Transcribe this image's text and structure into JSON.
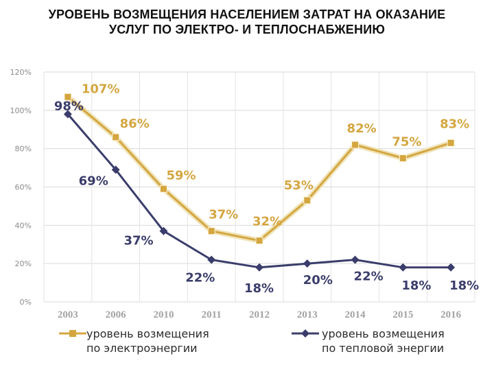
{
  "chart_data": {
    "type": "line",
    "title": [
      "УРОВЕНЬ ВОЗМЕЩЕНИЯ НАСЕЛЕНИЕМ ЗАТРАТ НА ОКАЗАНИЕ",
      "УСЛУГ ПО ЭЛЕКТРО- И ТЕПЛОСНАБЖЕНИЮ"
    ],
    "categories": [
      "2003",
      "2006",
      "2010",
      "2011",
      "2012",
      "2013",
      "2014",
      "2015",
      "2016"
    ],
    "y_ticks": [
      "0%",
      "20%",
      "40%",
      "60%",
      "80%",
      "100%",
      "120%"
    ],
    "ylim": [
      0,
      120
    ],
    "grid": true,
    "legend_position": "bottom",
    "series": [
      {
        "name": [
          "уровень возмещения",
          "по электроэнергии"
        ],
        "color": "#d4a640",
        "marker": "square",
        "values": [
          107,
          86,
          59,
          37,
          32,
          53,
          82,
          75,
          83
        ],
        "labels": [
          "107%",
          "86%",
          "59%",
          "37%",
          "32%",
          "53%",
          "82%",
          "75%",
          "83%"
        ]
      },
      {
        "name": [
          "уровень возмещения",
          "по тепловой энергии"
        ],
        "color": "#3a3d6b",
        "marker": "diamond",
        "values": [
          98,
          69,
          37,
          22,
          18,
          20,
          22,
          18,
          18
        ],
        "labels": [
          "98%",
          "69%",
          "37%",
          "22%",
          "18%",
          "20%",
          "22%",
          "18%",
          "18%"
        ]
      }
    ]
  }
}
